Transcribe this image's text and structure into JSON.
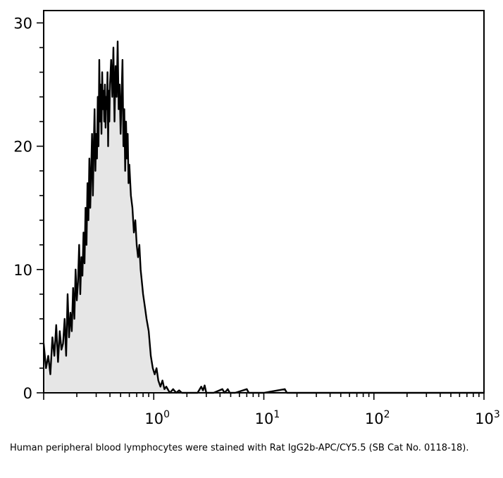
{
  "caption": "Human peripheral blood lymphocytes were stained with Rat IgG2b-APC/CY5.5 (SB Cat No. 0118-18).",
  "chart_data": {
    "type": "area",
    "title": "",
    "xlabel": "",
    "ylabel": "",
    "x_scale": "log",
    "xlim": [
      0.1,
      1000
    ],
    "ylim": [
      0,
      31
    ],
    "x_ticks": [
      {
        "value": 1,
        "base": "10",
        "exp": "0"
      },
      {
        "value": 10,
        "base": "10",
        "exp": "1"
      },
      {
        "value": 100,
        "base": "10",
        "exp": "2"
      },
      {
        "value": 1000,
        "base": "10",
        "exp": "3"
      }
    ],
    "y_ticks": [
      {
        "value": 0,
        "label": "0"
      },
      {
        "value": 10,
        "label": "10"
      },
      {
        "value": 20,
        "label": "20"
      },
      {
        "value": 30,
        "label": "30"
      }
    ],
    "grid": false,
    "fill_color": "#e6e6e6",
    "line_color": "#000000",
    "series": [
      {
        "x": [
          0.1,
          0.105,
          0.11,
          0.115,
          0.12,
          0.125,
          0.13,
          0.135,
          0.14,
          0.145,
          0.15,
          0.155,
          0.16,
          0.165,
          0.17,
          0.175,
          0.18,
          0.185,
          0.19,
          0.195,
          0.2,
          0.205,
          0.21,
          0.215,
          0.22,
          0.225,
          0.23,
          0.235,
          0.24,
          0.245,
          0.25,
          0.255,
          0.26,
          0.265,
          0.27,
          0.275,
          0.28,
          0.285,
          0.29,
          0.295,
          0.3,
          0.305,
          0.31,
          0.315,
          0.32,
          0.325,
          0.33,
          0.335,
          0.34,
          0.345,
          0.35,
          0.355,
          0.36,
          0.365,
          0.37,
          0.375,
          0.38,
          0.385,
          0.39,
          0.395,
          0.4,
          0.41,
          0.42,
          0.43,
          0.44,
          0.45,
          0.46,
          0.47,
          0.48,
          0.49,
          0.5,
          0.51,
          0.52,
          0.53,
          0.54,
          0.55,
          0.56,
          0.57,
          0.58,
          0.59,
          0.6,
          0.62,
          0.64,
          0.66,
          0.68,
          0.7,
          0.72,
          0.74,
          0.76,
          0.78,
          0.8,
          0.83,
          0.86,
          0.9,
          0.94,
          0.98,
          1.02,
          1.06,
          1.1,
          1.15,
          1.2,
          1.25,
          1.3,
          1.4,
          1.5,
          1.6,
          1.7,
          1.8,
          2.0,
          2.5,
          2.7,
          2.8,
          2.9,
          3.0,
          3.5,
          4.2,
          4.4,
          4.7,
          4.9,
          5.5,
          7.0,
          7.3,
          7.6,
          10,
          15.5,
          16.2,
          17,
          30,
          100,
          1000
        ],
        "y": [
          4,
          2,
          3,
          1.5,
          4.5,
          3,
          5.5,
          2.5,
          5,
          3.5,
          4,
          6,
          3,
          8,
          4.5,
          6.5,
          5,
          8.5,
          6,
          10,
          7.5,
          9,
          12,
          8,
          11,
          9.5,
          13,
          10.5,
          15,
          12,
          17,
          14,
          19,
          15,
          18,
          21,
          16,
          20,
          23,
          18,
          21,
          19,
          24,
          20,
          27,
          22,
          25,
          21,
          26,
          23,
          24.5,
          22,
          25,
          21.5,
          24,
          23,
          26,
          20,
          24.5,
          22,
          25,
          27,
          24,
          28,
          22,
          26.5,
          24,
          28.5,
          23,
          25,
          21,
          24,
          27,
          20,
          23,
          18,
          22,
          19,
          21,
          17,
          18.5,
          16,
          15,
          13,
          14,
          12,
          11,
          12,
          10,
          9,
          8,
          7,
          6,
          5,
          3,
          2,
          1.5,
          2,
          1,
          0.5,
          1,
          0.3,
          0.5,
          0,
          0.3,
          0,
          0.2,
          0,
          0,
          0,
          0.5,
          0.2,
          0.6,
          0,
          0,
          0.3,
          0,
          0.3,
          0,
          0,
          0.3,
          0,
          0,
          0,
          0.3,
          0,
          0,
          0,
          0,
          0
        ]
      }
    ]
  }
}
